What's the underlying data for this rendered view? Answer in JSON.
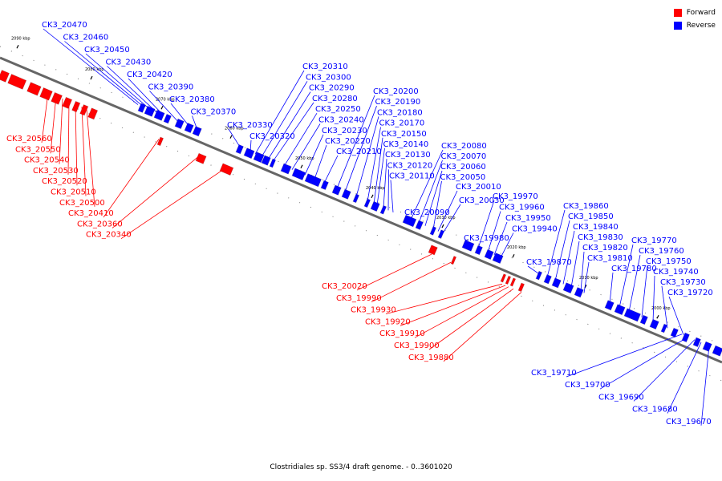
{
  "legend": {
    "forward_label": "Forward",
    "reverse_label": "Reverse",
    "forward_color": "#ff0000",
    "reverse_color": "#0000ff"
  },
  "caption": "Clostridiales sp. SS3/4 draft genome. - 0..3601020",
  "kbp_ticks": [
    "2090 kbp",
    "2080 kbp",
    "2070 kbp",
    "2060 kbp",
    "2050 kbp",
    "2040 kbp",
    "2030 kbp",
    "2020 kbp",
    "2010 kbp",
    "2000 kbp"
  ],
  "forward_genes": [
    "CK3_20560",
    "CK3_20550",
    "CK3_20540",
    "CK3_20530",
    "CK3_20520",
    "CK3_20510",
    "CK3_20500",
    "CK3_20410",
    "CK3_20360",
    "CK3_20340",
    "CK3_20020",
    "CK3_19990",
    "CK3_19930",
    "CK3_19920",
    "CK3_19910",
    "CK3_19900",
    "CK3_19880"
  ],
  "reverse_upper_genes": [
    "CK3_20470",
    "CK3_20460",
    "CK3_20450",
    "CK3_20430",
    "CK3_20420",
    "CK3_20390",
    "CK3_20380",
    "CK3_20370",
    "CK3_20330",
    "CK3_20320",
    "CK3_20310",
    "CK3_20300",
    "CK3_20290",
    "CK3_20280",
    "CK3_20250",
    "CK3_20240",
    "CK3_20230",
    "CK3_20220",
    "CK3_20210",
    "CK3_20200",
    "CK3_20190",
    "CK3_20180",
    "CK3_20170",
    "CK3_20150",
    "CK3_20140",
    "CK3_20130",
    "CK3_20120",
    "CK3_20110",
    "CK3_20090",
    "CK3_20080",
    "CK3_20070",
    "CK3_20060",
    "CK3_20050",
    "CK3_20010",
    "CK3_20030",
    "CK3_19980",
    "CK3_19970",
    "CK3_19960",
    "CK3_19950",
    "CK3_19940",
    "CK3_19870",
    "CK3_19860",
    "CK3_19850",
    "CK3_19840",
    "CK3_19830",
    "CK3_19820",
    "CK3_19810",
    "CK3_19780",
    "CK3_19770",
    "CK3_19760",
    "CK3_19750",
    "CK3_19740",
    "CK3_19730",
    "CK3_19720"
  ],
  "reverse_lower_genes": [
    "CK3_19710",
    "CK3_19700",
    "CK3_19690",
    "CK3_19680",
    "CK3_19670"
  ]
}
